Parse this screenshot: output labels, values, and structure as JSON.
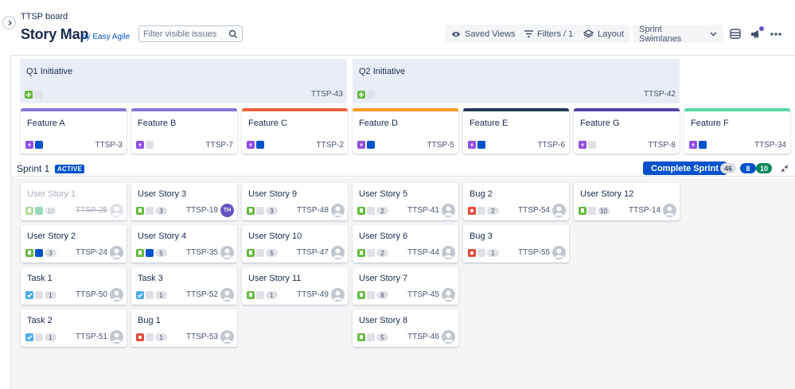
{
  "header": {
    "board_name": "TTSP board",
    "page_title": "Story Map",
    "by_easy_agile": "by Easy Agile",
    "filter_placeholder": "Filter visible issues",
    "saved_views_label": "Saved Views",
    "filters_label": "Filters / 1",
    "layout_label": "Layout",
    "swimlanes_label": "Sprint Swimlanes"
  },
  "initiatives": [
    {
      "title": "Q1 Initiative",
      "key": "TTSP-43"
    },
    {
      "title": "Q2 Initiative",
      "key": "TTSP-42"
    }
  ],
  "features": [
    {
      "title": "Feature A",
      "key": "TTSP-3",
      "color": "#8777d9",
      "status": "blue"
    },
    {
      "title": "Feature B",
      "key": "TTSP-7",
      "color": "#8777d9",
      "status": "blank"
    },
    {
      "title": "Feature C",
      "key": "TTSP-2",
      "color": "#f4643f",
      "status": "blue"
    },
    {
      "title": "Feature D",
      "key": "TTSP-5",
      "color": "#ff991f",
      "status": "blue"
    },
    {
      "title": "Feature E",
      "key": "TTSP-6",
      "color": "#253858",
      "status": "blue"
    },
    {
      "title": "Feature G",
      "key": "TTSP-8",
      "color": "#5243aa",
      "status": "blank"
    },
    {
      "title": "Feature F",
      "key": "TTSP-34",
      "color": "#57d9a3",
      "status": "blue"
    }
  ],
  "sprint": {
    "name": "Sprint 1",
    "badge": "ACTIVE",
    "complete_label": "Complete Sprint",
    "count_todo": "46",
    "count_inprogress": "8",
    "count_done": "10"
  },
  "columns": [
    [
      {
        "title": "User Story 1",
        "type": "story",
        "status": "green",
        "estimate": "10",
        "key": "TTSP-25",
        "assignee": "",
        "done": true
      },
      {
        "title": "User Story 2",
        "type": "story",
        "status": "blue",
        "estimate": "3",
        "key": "TTSP-24",
        "assignee": ""
      },
      {
        "title": "Task 1",
        "type": "task",
        "status": "blank",
        "estimate": "1",
        "key": "TTSP-50",
        "assignee": ""
      },
      {
        "title": "Task 2",
        "type": "task",
        "status": "blank",
        "estimate": "1",
        "key": "TTSP-51",
        "assignee": ""
      }
    ],
    [
      {
        "title": "User Story 3",
        "type": "story",
        "status": "blank",
        "estimate": "3",
        "key": "TTSP-19",
        "assignee": "TH"
      },
      {
        "title": "User Story 4",
        "type": "story",
        "status": "blue",
        "estimate": "5",
        "key": "TTSP-35",
        "assignee": ""
      },
      {
        "title": "Task 3",
        "type": "task",
        "status": "blank",
        "estimate": "1",
        "key": "TTSP-52",
        "assignee": ""
      },
      {
        "title": "Bug 1",
        "type": "bug",
        "status": "blank",
        "estimate": "1",
        "key": "TTSP-53",
        "assignee": ""
      }
    ],
    [
      {
        "title": "User Story 9",
        "type": "story",
        "status": "blank",
        "estimate": "3",
        "key": "TTSP-48",
        "assignee": ""
      },
      {
        "title": "User Story 10",
        "type": "story",
        "status": "blank",
        "estimate": "5",
        "key": "TTSP-47",
        "assignee": ""
      },
      {
        "title": "User Story 11",
        "type": "story",
        "status": "blank",
        "estimate": "1",
        "key": "TTSP-49",
        "assignee": ""
      }
    ],
    [
      {
        "title": "User Story 5",
        "type": "story",
        "status": "blank",
        "estimate": "2",
        "key": "TTSP-41",
        "assignee": ""
      },
      {
        "title": "User Story 6",
        "type": "story",
        "status": "blank",
        "estimate": "2",
        "key": "TTSP-44",
        "assignee": ""
      },
      {
        "title": "User Story 7",
        "type": "story",
        "status": "blank",
        "estimate": "8",
        "key": "TTSP-45",
        "assignee": ""
      },
      {
        "title": "User Story 8",
        "type": "story",
        "status": "blank",
        "estimate": "5",
        "key": "TTSP-46",
        "assignee": ""
      }
    ],
    [
      {
        "title": "Bug 2",
        "type": "bug",
        "status": "blank",
        "estimate": "2",
        "key": "TTSP-54",
        "assignee": ""
      },
      {
        "title": "Bug 3",
        "type": "bug",
        "status": "blank",
        "estimate": "1",
        "key": "TTSP-55",
        "assignee": ""
      }
    ],
    [
      {
        "title": "User Story 12",
        "type": "story",
        "status": "blank",
        "estimate": "10",
        "key": "TTSP-14",
        "assignee": ""
      }
    ]
  ],
  "colors": {
    "primary": "#0052cc",
    "todo_pill": "#dfe1e6",
    "inprogress_pill": "#0052cc",
    "done_pill": "#00875a"
  }
}
